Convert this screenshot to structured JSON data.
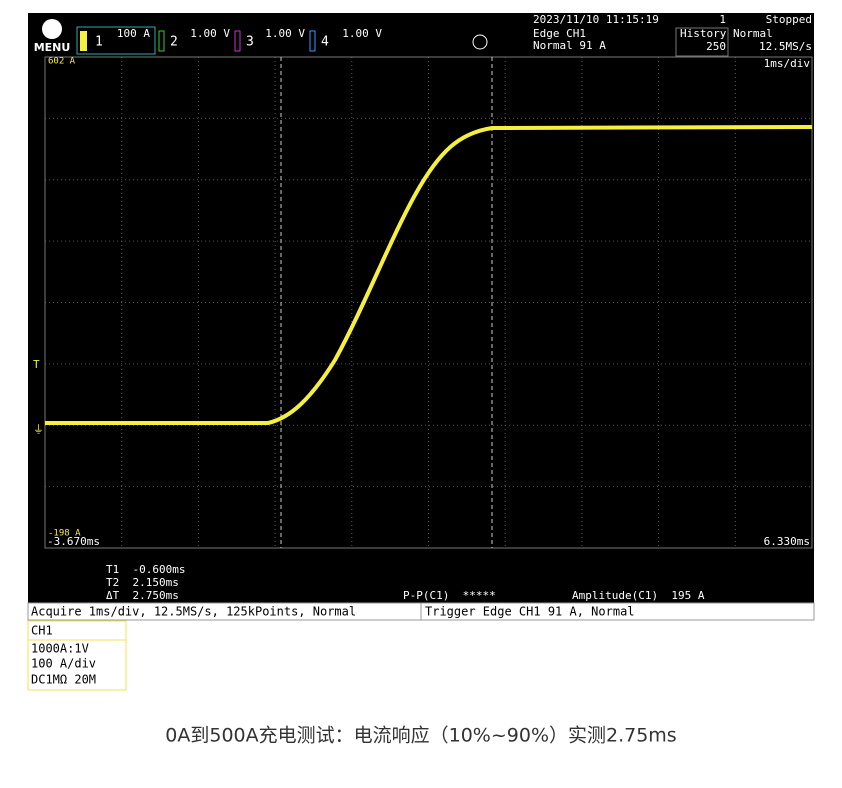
{
  "menu": "MENU",
  "channels": [
    {
      "number": "1",
      "scale": "100 A"
    },
    {
      "number": "2",
      "scale": "1.00 V"
    },
    {
      "number": "3",
      "scale": "1.00 V"
    },
    {
      "number": "4",
      "scale": "1.00 V"
    }
  ],
  "status": {
    "datetime": "2023/11/10 11:15:19",
    "count": "1",
    "state": "Stopped",
    "trigger": "Edge CH1",
    "trigger_level": "Normal 91 A",
    "history_label": "History",
    "history": "250",
    "mode": "Normal",
    "sample_rate": "12.5MS/s",
    "timebase": "1ms/div"
  },
  "plot": {
    "top_label": "602 A",
    "bottom_label": "-198 A",
    "left_time": "-3.670ms",
    "right_time": "6.330ms"
  },
  "measurements": {
    "t1": "T1  -0.600ms",
    "t2": "T2  2.150ms",
    "dt": "ΔT  2.750ms",
    "pp": "P-P(C1)  *****",
    "amplitude": "Amplitude(C1)  195 A"
  },
  "footer": {
    "acquire": "Acquire 1ms/div, 12.5MS/s, 125kPoints, Normal",
    "trigger": "Trigger Edge CH1 91 A, Normal"
  },
  "channel_info": {
    "title": "CH1",
    "lines": [
      "1000A:1V",
      "100 A/div",
      "DC1MΩ 20M"
    ]
  },
  "caption": "0A到500A充电测试：电流响应（10%~90%）实测2.75ms"
}
